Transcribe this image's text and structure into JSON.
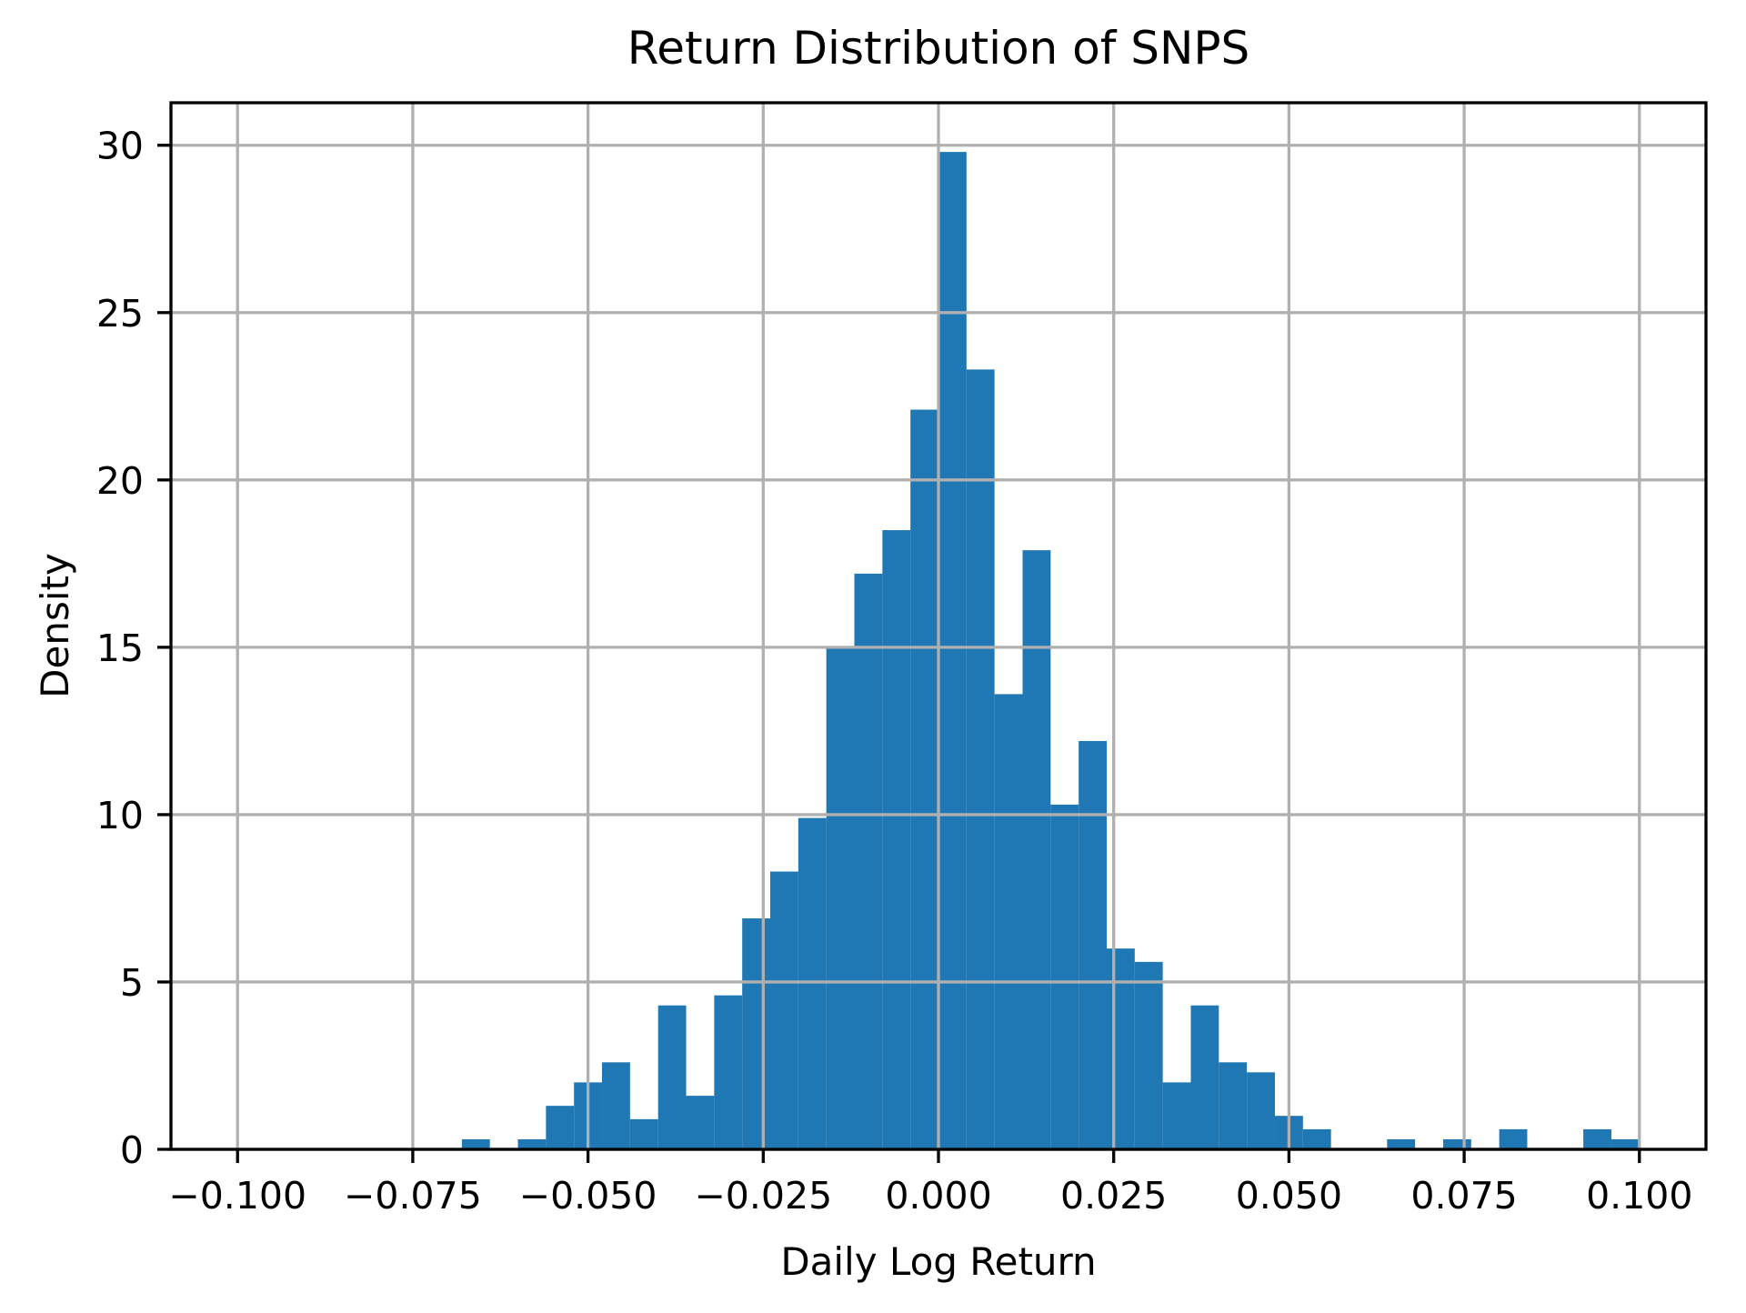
{
  "chart_data": {
    "type": "bar",
    "subtype": "histogram",
    "title": "Return Distribution of SNPS",
    "xlabel": "Daily Log Return",
    "ylabel": "Density",
    "bin_start": -0.068,
    "bin_width": 0.004,
    "densities": [
      0.3,
      0,
      0.3,
      1.3,
      2.0,
      2.6,
      0.9,
      4.3,
      1.6,
      4.6,
      6.9,
      8.3,
      9.9,
      15.0,
      17.2,
      18.5,
      22.1,
      29.8,
      23.3,
      13.6,
      17.9,
      10.3,
      12.2,
      6.0,
      5.6,
      2.0,
      4.3,
      2.6,
      2.3,
      1.0,
      0.6,
      0,
      0,
      0.3,
      0,
      0.3,
      0,
      0.6,
      0,
      0,
      0.6,
      0.3
    ],
    "xlim": [
      -0.1095,
      0.1095
    ],
    "ylim": [
      0,
      31.27
    ],
    "x_ticks": {
      "values": [
        -0.1,
        -0.075,
        -0.05,
        -0.025,
        0.0,
        0.025,
        0.05,
        0.075,
        0.1
      ],
      "labels": [
        "−0.100",
        "−0.075",
        "−0.050",
        "−0.025",
        "0.000",
        "0.025",
        "0.050",
        "0.075",
        "0.100"
      ]
    },
    "y_ticks": {
      "values": [
        0,
        5,
        10,
        15,
        20,
        25,
        30
      ],
      "labels": [
        "0",
        "5",
        "10",
        "15",
        "20",
        "25",
        "30"
      ]
    },
    "grid": true,
    "legend_position": "none",
    "colors": {
      "bar": "#1f77b4",
      "grid": "#b0b0b0",
      "axis": "#000000",
      "text": "#000000",
      "background": "#ffffff"
    }
  }
}
